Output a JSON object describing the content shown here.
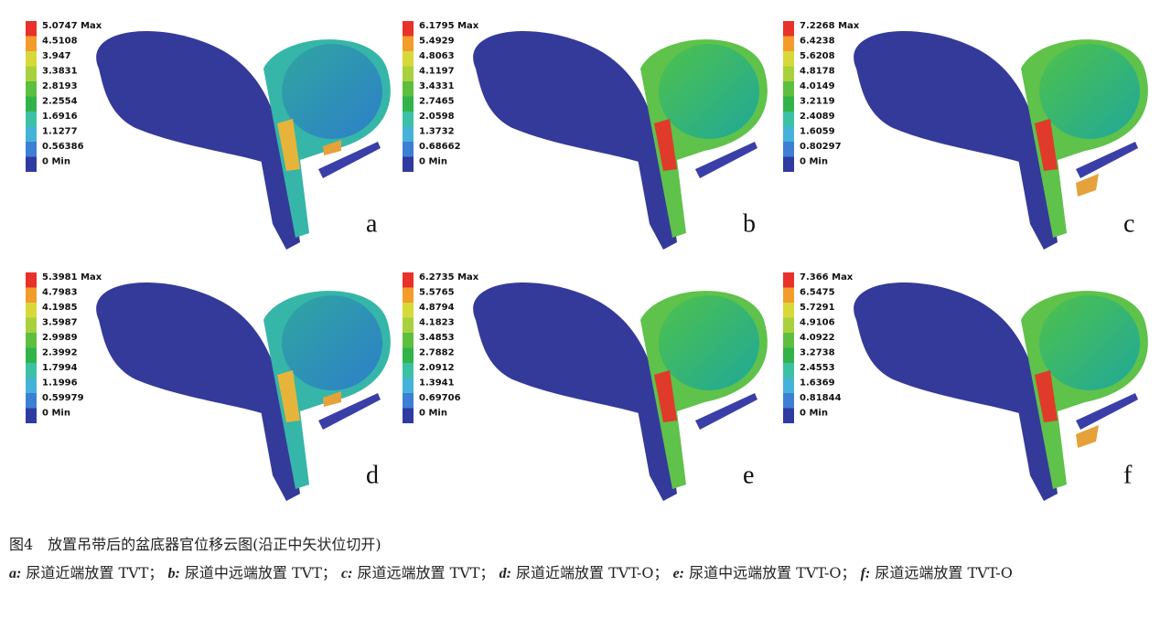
{
  "panels": [
    {
      "letter": "a",
      "legend": [
        "5.0747 Max",
        "4.5108",
        "3.947",
        "3.3831",
        "2.8193",
        "2.2554",
        "1.6916",
        "1.1277",
        "0.56386",
        "0 Min"
      ]
    },
    {
      "letter": "b",
      "legend": [
        "6.1795 Max",
        "5.4929",
        "4.8063",
        "4.1197",
        "3.4331",
        "2.7465",
        "2.0598",
        "1.3732",
        "0.68662",
        "0 Min"
      ]
    },
    {
      "letter": "c",
      "legend": [
        "7.2268 Max",
        "6.4238",
        "5.6208",
        "4.8178",
        "4.0149",
        "3.2119",
        "2.4089",
        "1.6059",
        "0.80297",
        "0 Min"
      ]
    },
    {
      "letter": "d",
      "legend": [
        "5.3981 Max",
        "4.7983",
        "4.1985",
        "3.5987",
        "2.9989",
        "2.3992",
        "1.7994",
        "1.1996",
        "0.59979",
        "0 Min"
      ]
    },
    {
      "letter": "e",
      "legend": [
        "6.2735 Max",
        "5.5765",
        "4.8794",
        "4.1823",
        "3.4853",
        "2.7882",
        "2.0912",
        "1.3941",
        "0.69706",
        "0 Min"
      ]
    },
    {
      "letter": "f",
      "legend": [
        "7.366 Max",
        "6.5475",
        "5.7291",
        "4.9106",
        "4.0922",
        "3.2738",
        "2.4553",
        "1.6369",
        "0.81844",
        "0 Min"
      ]
    }
  ],
  "caption": {
    "title": "图4　放置吊带后的盆底器官位移云图(沿正中矢状位切开)",
    "items": [
      {
        "label": "a:",
        "text": "尿道近端放置 TVT；"
      },
      {
        "label": "b:",
        "text": "尿道中远端放置 TVT；"
      },
      {
        "label": "c:",
        "text": "尿道远端放置 TVT；"
      },
      {
        "label": "d:",
        "text": "尿道近端放置 TVT-O；"
      },
      {
        "label": "e:",
        "text": "尿道中远端放置 TVT-O；"
      },
      {
        "label": "f:",
        "text": "尿道远端放置 TVT-O"
      }
    ]
  }
}
